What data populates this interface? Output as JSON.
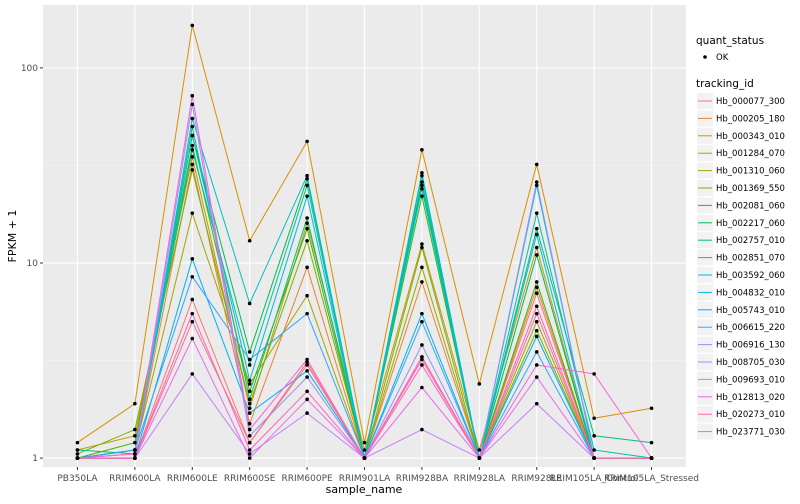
{
  "chart_data": {
    "type": "line",
    "xlabel": "sample_name",
    "ylabel": "FPKM + 1",
    "y_scale": "log10",
    "ylim": [
      0.9,
      210
    ],
    "y_ticks": [
      1,
      10,
      100
    ],
    "y_tick_labels": [
      "1",
      "10",
      "100"
    ],
    "grid": true,
    "legend_position": "right",
    "categories": [
      "PB350LA",
      "RRIM600LA",
      "RRIM600LE",
      "RRIM600SE",
      "RRIM600PE",
      "RRIM901LA",
      "RRIM928BA",
      "RRIM928LA",
      "RRIM928LE",
      "RRIM105LA_Control",
      "RRIM105LA_Stressed"
    ],
    "quant_status_legend": {
      "title": "quant_status",
      "items": [
        "OK"
      ]
    },
    "legend_title": "tracking_id",
    "series": [
      {
        "name": "Hb_000077_300",
        "color": "#F8766D",
        "values": [
          1.0,
          1.0,
          6.5,
          1.2,
          3.0,
          1.0,
          3.3,
          1.0,
          7.0,
          1.0,
          1.0
        ]
      },
      {
        "name": "Hb_000205_180",
        "color": "#EA8331",
        "values": [
          1.0,
          1.05,
          32,
          1.5,
          9.5,
          1.0,
          8.0,
          1.0,
          7.5,
          1.0,
          1.0
        ]
      },
      {
        "name": "Hb_000343_010",
        "color": "#D89000",
        "values": [
          1.2,
          1.9,
          165,
          13,
          42,
          1.2,
          38,
          2.4,
          32,
          1.6,
          1.8
        ]
      },
      {
        "name": "Hb_001284_070",
        "color": "#C09B00",
        "values": [
          1.1,
          1.3,
          35,
          1.8,
          16,
          1.1,
          12.5,
          1.1,
          12,
          1.0,
          1.0
        ]
      },
      {
        "name": "Hb_001310_060",
        "color": "#A3A500",
        "values": [
          1.0,
          1.1,
          18,
          2.4,
          6.8,
          1.0,
          9.5,
          1.0,
          5.0,
          1.0,
          1.0
        ]
      },
      {
        "name": "Hb_001369_550",
        "color": "#7CAE00",
        "values": [
          1.05,
          1.4,
          30,
          1.9,
          13,
          1.0,
          12,
          1.0,
          4.5,
          1.0,
          1.0
        ]
      },
      {
        "name": "Hb_002081_060",
        "color": "#39B600",
        "values": [
          1.0,
          1.2,
          40,
          2.2,
          15,
          1.0,
          22,
          1.0,
          8.0,
          1.0,
          1.0
        ]
      },
      {
        "name": "Hb_002217_060",
        "color": "#00BB4E",
        "values": [
          1.0,
          1.1,
          45,
          3.5,
          27,
          1.0,
          26,
          1.0,
          11,
          1.0,
          1.0
        ]
      },
      {
        "name": "Hb_002757_010",
        "color": "#00BF7D",
        "values": [
          1.1,
          1.05,
          50,
          2.0,
          17,
          1.0,
          25,
          1.0,
          15,
          1.3,
          1.2
        ]
      },
      {
        "name": "Hb_002851_070",
        "color": "#00C1A3",
        "values": [
          1.0,
          1.1,
          38,
          3.0,
          25,
          1.0,
          28,
          1.0,
          18,
          1.1,
          1.0
        ]
      },
      {
        "name": "Hb_003592_060",
        "color": "#00BFC4",
        "values": [
          1.0,
          1.0,
          55,
          6.2,
          28,
          1.0,
          29,
          1.0,
          25,
          1.0,
          1.0
        ]
      },
      {
        "name": "Hb_004832_010",
        "color": "#00BAE0",
        "values": [
          1.0,
          1.1,
          45,
          2.5,
          22,
          1.0,
          24,
          1.0,
          14,
          1.0,
          1.0
        ]
      },
      {
        "name": "Hb_005743_010",
        "color": "#00B0F6",
        "values": [
          1.0,
          1.0,
          10.5,
          1.7,
          2.8,
          1.0,
          5.5,
          1.0,
          4.2,
          1.0,
          1.0
        ]
      },
      {
        "name": "Hb_006615_220",
        "color": "#35A2FF",
        "values": [
          1.0,
          1.1,
          8.5,
          3.2,
          5.5,
          1.0,
          5.0,
          1.0,
          3.5,
          1.0,
          1.0
        ]
      },
      {
        "name": "Hb_006916_130",
        "color": "#9590FF",
        "values": [
          1.0,
          1.0,
          65,
          1.3,
          2.6,
          1.0,
          3.8,
          1.0,
          26,
          1.0,
          1.0
        ]
      },
      {
        "name": "Hb_008705_030",
        "color": "#C77CFF",
        "values": [
          1.0,
          1.0,
          2.7,
          1.05,
          1.7,
          1.0,
          1.4,
          1.0,
          1.9,
          1.0,
          1.0
        ]
      },
      {
        "name": "Hb_009693_010",
        "color": "#E76BF3",
        "values": [
          1.0,
          1.0,
          4.1,
          1.0,
          2.0,
          1.0,
          2.3,
          1.0,
          2.6,
          1.0,
          1.0
        ]
      },
      {
        "name": "Hb_012813_020",
        "color": "#FA62DB",
        "values": [
          1.0,
          1.05,
          72,
          1.4,
          3.2,
          1.0,
          3.2,
          1.0,
          3.0,
          2.7,
          1.0
        ]
      },
      {
        "name": "Hb_020273_010",
        "color": "#FF62BC",
        "values": [
          1.0,
          1.0,
          5.5,
          1.1,
          2.2,
          1.0,
          3.0,
          1.0,
          6.0,
          1.0,
          1.0
        ]
      },
      {
        "name": "Hb_023771_030",
        "color": "#FF6C91",
        "values": [
          1.0,
          1.0,
          5.0,
          1.2,
          3.1,
          1.0,
          3.3,
          1.0,
          5.5,
          1.0,
          1.0
        ]
      }
    ]
  }
}
